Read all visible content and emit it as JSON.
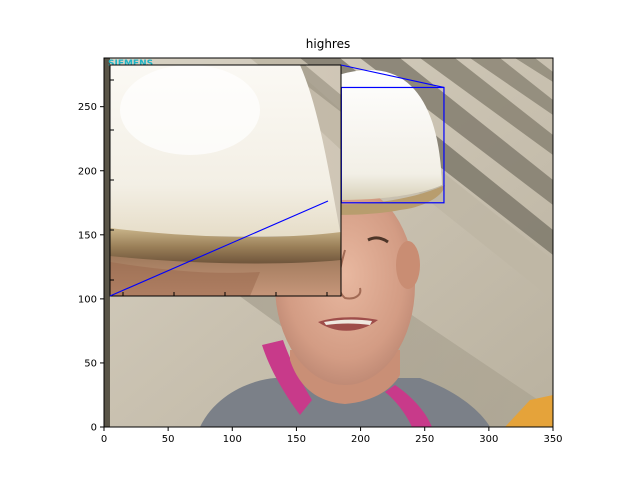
{
  "chart_data": {
    "type": "image",
    "title": "highres",
    "xlabel": "",
    "ylabel": "",
    "xlim": [
      0,
      350
    ],
    "ylim": [
      0,
      288
    ],
    "xticks": [
      0,
      50,
      100,
      150,
      200,
      250,
      300,
      350
    ],
    "yticks": [
      0,
      50,
      100,
      150,
      200,
      250
    ],
    "image_subject": "photo of a smiling man wearing a white hard hat in front of a concrete structure",
    "image_watermark_text": "SIEMENS",
    "inset": {
      "region_x": [
        185,
        265
      ],
      "region_y": [
        175,
        265
      ],
      "shows": "zoomed view of the white hard hat brim",
      "has_tick_marks": true,
      "line_color": "#0000ff"
    },
    "colors": {
      "indicator": "#0000ff",
      "axes": "#000000",
      "background": "#ffffff"
    }
  }
}
